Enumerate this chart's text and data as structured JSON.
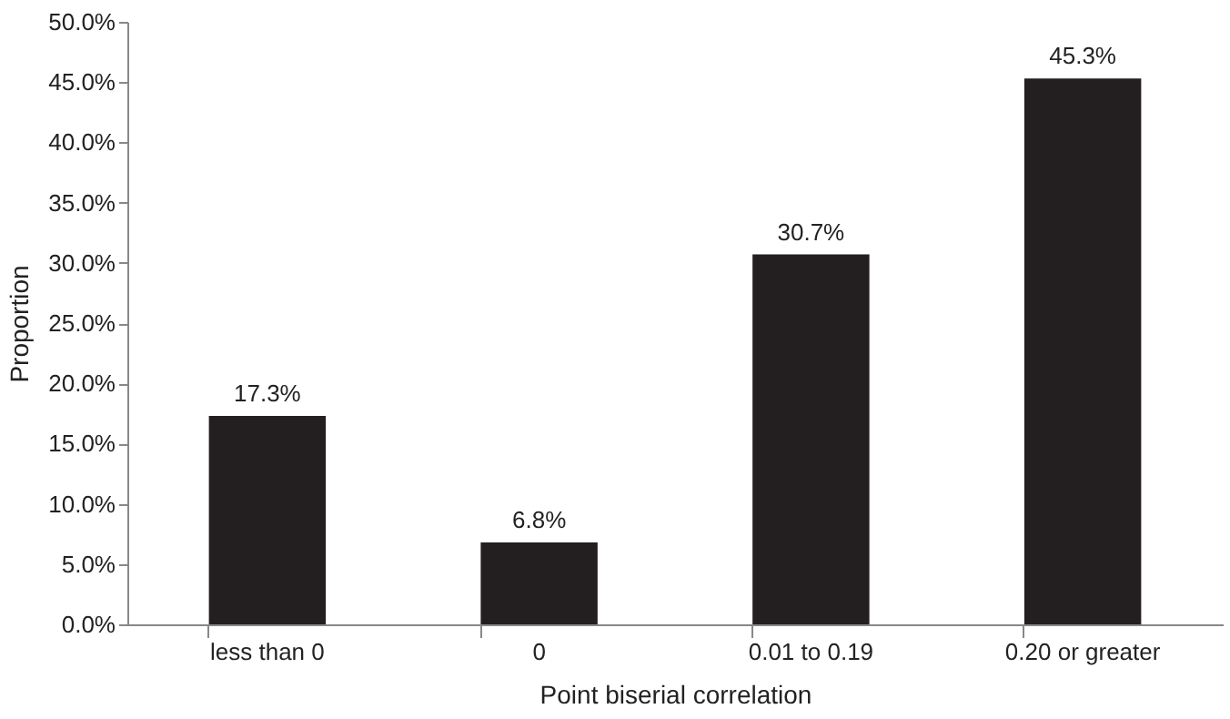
{
  "chart_data": {
    "type": "bar",
    "xlabel": "Point biserial correlation",
    "ylabel": "Proportion",
    "categories": [
      "less than 0",
      "0",
      "0.01 to 0.19",
      "0.20 or greater"
    ],
    "values": [
      17.3,
      6.8,
      30.7,
      45.3
    ],
    "value_labels": [
      "17.3%",
      "6.8%",
      "30.7%",
      "45.3%"
    ],
    "color": "#231f20",
    "ylim": [
      0,
      50
    ],
    "yticks": [
      {
        "value": 0,
        "label": "0.0%"
      },
      {
        "value": 5,
        "label": "5.0%"
      },
      {
        "value": 10,
        "label": "10.0%"
      },
      {
        "value": 15,
        "label": "15.0%"
      },
      {
        "value": 20,
        "label": "20.0%"
      },
      {
        "value": 25,
        "label": "25.0%"
      },
      {
        "value": 30,
        "label": "30.0%"
      },
      {
        "value": 35,
        "label": "35.0%"
      },
      {
        "value": 40,
        "label": "40.0%"
      },
      {
        "value": 45,
        "label": "45.0%"
      },
      {
        "value": 50,
        "label": "50.0%"
      }
    ],
    "grid": false
  }
}
